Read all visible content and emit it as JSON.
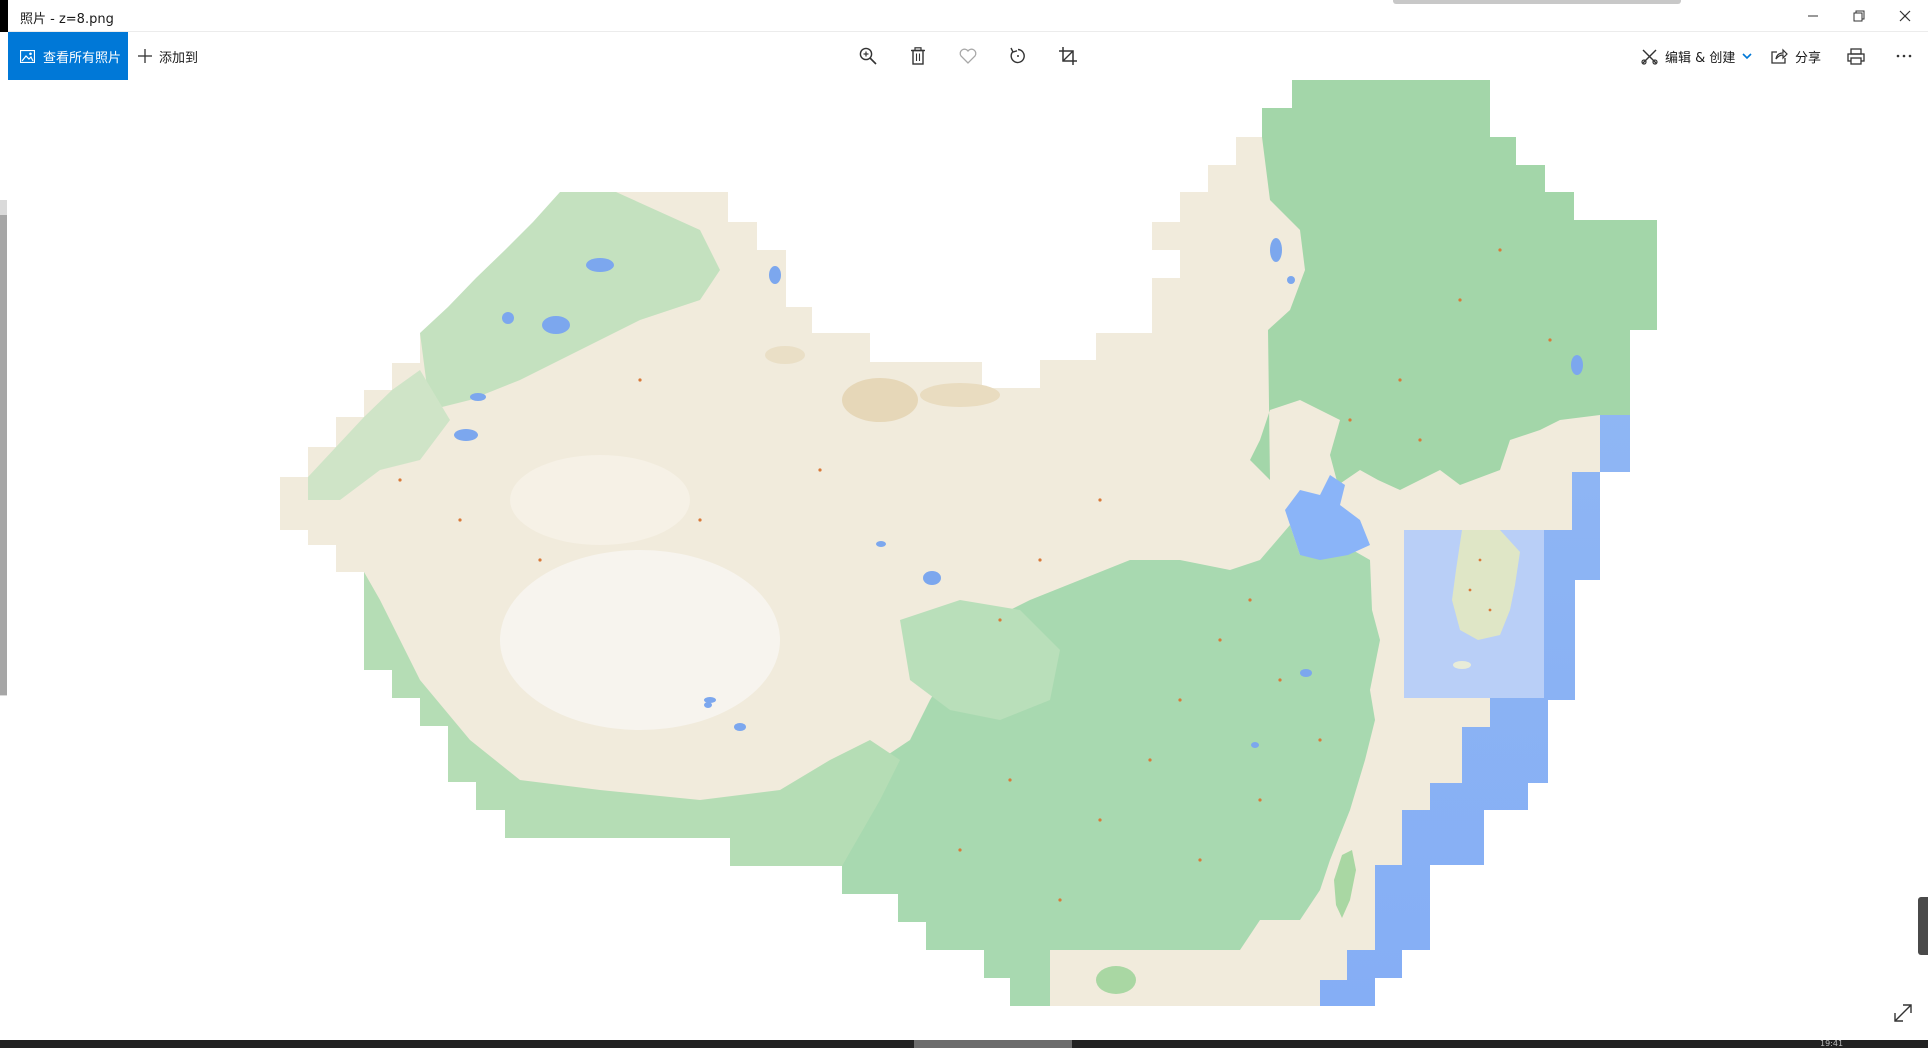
{
  "window": {
    "title": "照片 - z=8.png",
    "controls": [
      "minimize",
      "restore",
      "close"
    ]
  },
  "toolbar": {
    "view_all_label": "查看所有照片",
    "add_to_label": "添加到",
    "center_tools": [
      "zoom-in-icon",
      "delete-icon",
      "favorite-icon",
      "rotate-icon",
      "crop-icon"
    ],
    "edit_create_label": "编辑 & 创建",
    "share_label": "分享",
    "print_icon": "print-icon",
    "more_icon": "more-icon"
  },
  "image": {
    "file_name": "z=8.png",
    "content": "stitched map tiles (terrain) of China and surrounding region"
  },
  "colors": {
    "accent": "#0078d7",
    "ocean": "#8ab4f8",
    "plains_green": "#a8d9b0",
    "desert_beige": "#f1ebdc",
    "highland_white": "#f4f1ec"
  },
  "taskbar": {
    "clock_fragment": "19:41"
  }
}
